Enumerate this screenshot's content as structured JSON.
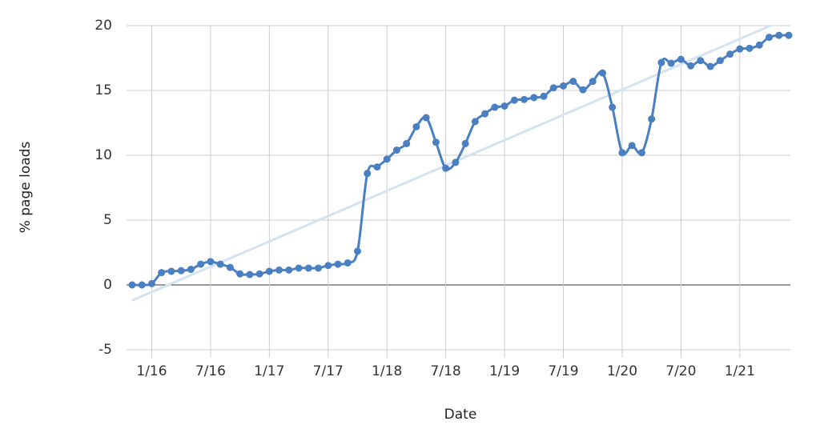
{
  "chart_data": {
    "type": "line",
    "x_label": "Date",
    "y_label": "% page loads",
    "x": [
      "11/15",
      "12/15",
      "1/16",
      "2/16",
      "3/16",
      "4/16",
      "5/16",
      "6/16",
      "7/16",
      "8/16",
      "9/16",
      "10/16",
      "11/16",
      "12/16",
      "1/17",
      "2/17",
      "3/17",
      "4/17",
      "5/17",
      "6/17",
      "7/17",
      "8/17",
      "9/17",
      "10/17",
      "11/17",
      "12/17",
      "1/18",
      "2/18",
      "3/18",
      "4/18",
      "5/18",
      "6/18",
      "7/18",
      "8/18",
      "9/18",
      "10/18",
      "11/18",
      "12/18",
      "1/19",
      "2/19",
      "3/19",
      "4/19",
      "5/19",
      "6/19",
      "7/19",
      "8/19",
      "9/19",
      "10/19",
      "11/19",
      "12/19",
      "1/20",
      "2/20",
      "3/20",
      "4/20",
      "5/20",
      "6/20",
      "7/20",
      "8/20",
      "9/20",
      "10/20",
      "11/20",
      "12/20",
      "1/21",
      "2/21",
      "3/21",
      "4/21",
      "5/21",
      "6/21"
    ],
    "series": [
      {
        "name": "% page loads",
        "color": "#4a7fc1",
        "values": [
          0,
          0,
          0.1,
          0.95,
          1.05,
          1.1,
          1.2,
          1.6,
          1.8,
          1.6,
          1.35,
          0.85,
          0.8,
          0.85,
          1.05,
          1.15,
          1.15,
          1.3,
          1.3,
          1.3,
          1.5,
          1.6,
          1.7,
          2.6,
          8.6,
          9.1,
          9.7,
          10.4,
          10.9,
          12.2,
          12.9,
          11.0,
          9.0,
          9.45,
          10.9,
          12.6,
          13.2,
          13.7,
          13.8,
          14.25,
          14.3,
          14.45,
          14.55,
          15.2,
          15.35,
          15.7,
          15.05,
          15.7,
          16.35,
          13.7,
          10.2,
          10.75,
          10.2,
          12.8,
          17.15,
          17.1,
          17.4,
          16.9,
          17.3,
          16.85,
          17.3,
          17.8,
          18.2,
          18.25,
          18.5,
          19.1,
          19.25,
          19.25
        ]
      }
    ],
    "trendline": {
      "color": "#d3e3f3",
      "values": [
        -1.2,
        20.6
      ]
    },
    "xticks": [
      "1/16",
      "7/16",
      "1/17",
      "7/17",
      "1/18",
      "7/18",
      "1/19",
      "7/19",
      "1/20",
      "7/20",
      "1/21"
    ],
    "ylim": [
      -5,
      20
    ],
    "yticks": [
      -5,
      0,
      5,
      10,
      15,
      20
    ],
    "grid": true
  }
}
